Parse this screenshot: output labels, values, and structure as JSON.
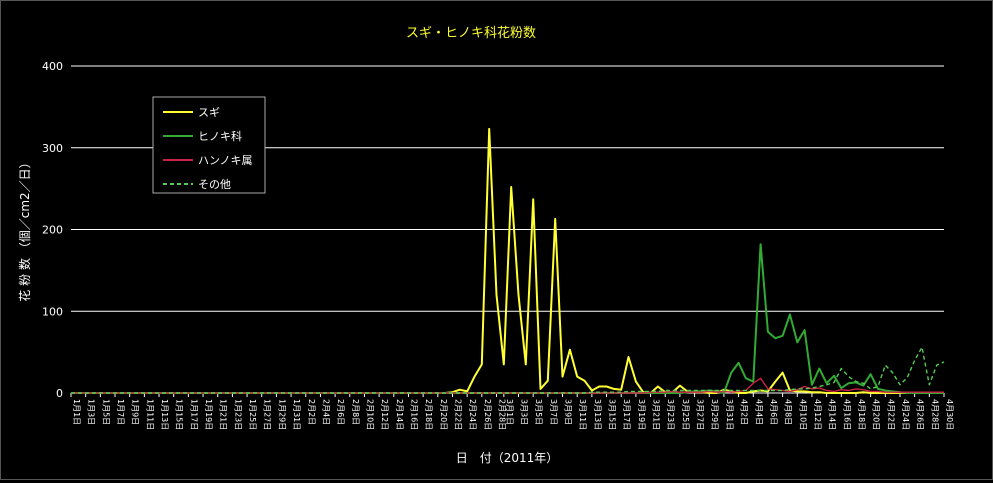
{
  "chart_data": {
    "type": "line",
    "title": "スギ・ヒノキ科花粉数",
    "xlabel": "日　付（2011年）",
    "ylabel": "花 粉 数 （個／cm2／日）",
    "ylim": [
      0,
      400
    ],
    "yticks": [
      0,
      100,
      200,
      300,
      400
    ],
    "grid": true,
    "legend_position": "top-left",
    "x_dates": [
      "1月1日",
      "1月2日",
      "1月3日",
      "1月4日",
      "1月5日",
      "1月6日",
      "1月7日",
      "1月8日",
      "1月9日",
      "1月10日",
      "1月11日",
      "1月12日",
      "1月13日",
      "1月14日",
      "1月15日",
      "1月16日",
      "1月17日",
      "1月18日",
      "1月19日",
      "1月20日",
      "1月21日",
      "1月22日",
      "1月23日",
      "1月24日",
      "1月25日",
      "1月26日",
      "1月27日",
      "1月28日",
      "1月29日",
      "1月30日",
      "1月31日",
      "2月1日",
      "2月2日",
      "2月3日",
      "2月4日",
      "2月5日",
      "2月6日",
      "2月7日",
      "2月8日",
      "2月9日",
      "2月10日",
      "2月11日",
      "2月12日",
      "2月13日",
      "2月14日",
      "2月15日",
      "2月16日",
      "2月17日",
      "2月18日",
      "2月19日",
      "2月20日",
      "2月21日",
      "2月22日",
      "2月23日",
      "2月24日",
      "2月25日",
      "2月26日",
      "2月27日",
      "2月28日",
      "3月1日",
      "3月2日",
      "3月3日",
      "3月4日",
      "3月5日",
      "3月6日",
      "3月7日",
      "3月8日",
      "3月9日",
      "3月10日",
      "3月11日",
      "3月12日",
      "3月13日",
      "3月14日",
      "3月15日",
      "3月16日",
      "3月17日",
      "3月18日",
      "3月19日",
      "3月20日",
      "3月21日",
      "3月22日",
      "3月23日",
      "3月24日",
      "3月25日",
      "3月26日",
      "3月27日",
      "3月28日",
      "3月29日",
      "3月30日",
      "3月31日",
      "4月1日",
      "4月2日",
      "4月3日",
      "4月4日",
      "4月5日",
      "4月6日",
      "4月7日",
      "4月8日",
      "4月9日",
      "4月10日",
      "4月11日",
      "4月12日",
      "4月13日",
      "4月14日",
      "4月15日",
      "4月16日",
      "4月17日",
      "4月18日",
      "4月19日",
      "4月20日",
      "4月21日",
      "4月22日",
      "4月23日",
      "4月24日",
      "4月25日",
      "4月26日",
      "4月27日",
      "4月28日",
      "4月29日",
      "4月30日"
    ],
    "x_tick_labels": [
      "1月1日",
      "1月3日",
      "1月5日",
      "1月7日",
      "1月9日",
      "1月11日",
      "1月13日",
      "1月15日",
      "1月17日",
      "1月19日",
      "1月21日",
      "1月23日",
      "1月25日",
      "1月27日",
      "1月29日",
      "1月31日",
      "2月2日",
      "2月4日",
      "2月6日",
      "2月8日",
      "2月10日",
      "2月12日",
      "2月14日",
      "2月16日",
      "2月18日",
      "2月20日",
      "2月22日",
      "2月24日",
      "2月26日",
      "2月28日",
      "3月1日",
      "3月3日",
      "3月5日",
      "3月7日",
      "3月9日",
      "3月11日",
      "3月13日",
      "3月15日",
      "3月17日",
      "3月19日",
      "3月21日",
      "3月23日",
      "3月25日",
      "3月27日",
      "3月29日",
      "3月31日",
      "4月2日",
      "4月4日",
      "4月6日",
      "4月8日",
      "4月10日",
      "4月12日",
      "4月14日",
      "4月16日",
      "4月18日",
      "4月20日",
      "4月22日",
      "4月24日",
      "4月26日",
      "4月28日",
      "4月30日"
    ],
    "series": [
      {
        "name": "スギ",
        "color": "#ffff33",
        "dash": "solid",
        "values": [
          0,
          0,
          0,
          0,
          0,
          0,
          0,
          0,
          0,
          0,
          0,
          0,
          0,
          0,
          0,
          0,
          0,
          0,
          0,
          0,
          0,
          0,
          0,
          0,
          0,
          0,
          0,
          0,
          0,
          0,
          0,
          0,
          0,
          0,
          0,
          0,
          0,
          0,
          0,
          0,
          0,
          0,
          0,
          0,
          0,
          0,
          0,
          0,
          0,
          0,
          0,
          0,
          1,
          4,
          2,
          20,
          35,
          323,
          120,
          35,
          252,
          120,
          35,
          237,
          5,
          15,
          213,
          20,
          53,
          20,
          15,
          3,
          8,
          8,
          5,
          4,
          44,
          14,
          1,
          0,
          8,
          1,
          1,
          9,
          2,
          1,
          1,
          0,
          0,
          4,
          2,
          0,
          0,
          2,
          3,
          2,
          14,
          25,
          3,
          2,
          2,
          1,
          1,
          0,
          0,
          0,
          0,
          0,
          1,
          0,
          0,
          0,
          0,
          0,
          0,
          0,
          0,
          0,
          0,
          0
        ]
      },
      {
        "name": "ヒノキ科",
        "color": "#33aa33",
        "dash": "solid",
        "values": [
          0,
          0,
          0,
          0,
          0,
          0,
          0,
          0,
          0,
          0,
          0,
          0,
          0,
          0,
          0,
          0,
          0,
          0,
          0,
          0,
          0,
          0,
          0,
          0,
          0,
          0,
          0,
          0,
          0,
          0,
          0,
          0,
          0,
          0,
          0,
          0,
          0,
          0,
          0,
          0,
          0,
          0,
          0,
          0,
          0,
          0,
          0,
          0,
          0,
          0,
          0,
          0,
          0,
          0,
          0,
          0,
          0,
          0,
          0,
          0,
          0,
          0,
          0,
          0,
          0,
          0,
          0,
          0,
          0,
          0,
          0,
          0,
          0,
          0,
          0,
          0,
          0,
          0,
          0,
          0,
          0,
          0,
          0,
          0,
          1,
          2,
          2,
          3,
          2,
          0,
          25,
          37,
          18,
          14,
          182,
          75,
          67,
          70,
          96,
          62,
          77,
          10,
          30,
          12,
          21,
          6,
          12,
          13,
          9,
          23,
          5,
          3,
          2,
          1,
          0,
          0,
          0,
          0,
          0,
          0
        ]
      },
      {
        "name": "ハンノキ属",
        "color": "#cc2244",
        "dash": "solid",
        "values": [
          0,
          0,
          0,
          0,
          0,
          0,
          0,
          0,
          0,
          0,
          0,
          0,
          0,
          0,
          0,
          0,
          0,
          0,
          0,
          0,
          0,
          0,
          0,
          0,
          0,
          0,
          0,
          0,
          0,
          0,
          0,
          0,
          0,
          0,
          0,
          0,
          0,
          0,
          0,
          0,
          0,
          0,
          0,
          0,
          0,
          0,
          0,
          0,
          0,
          0,
          0,
          0,
          0,
          0,
          0,
          0,
          0,
          0,
          0,
          0,
          0,
          0,
          0,
          0,
          0,
          0,
          0,
          0,
          0,
          0,
          0,
          0,
          0,
          0,
          0,
          0,
          0,
          0,
          0,
          1,
          1,
          1,
          2,
          1,
          1,
          1,
          1,
          2,
          1,
          2,
          1,
          2,
          3,
          12,
          18,
          5,
          4,
          3,
          2,
          4,
          8,
          5,
          6,
          3,
          2,
          4,
          3,
          5,
          4,
          2,
          2,
          1,
          1,
          1,
          1,
          1,
          1,
          1,
          1,
          1
        ]
      },
      {
        "name": "その他",
        "color": "#55cc55",
        "dash": "dashed",
        "values": [
          0,
          0,
          0,
          0,
          0,
          0,
          0,
          0,
          0,
          0,
          0,
          0,
          0,
          0,
          0,
          0,
          0,
          0,
          0,
          0,
          0,
          0,
          0,
          0,
          0,
          0,
          0,
          0,
          0,
          0,
          0,
          0,
          0,
          0,
          0,
          0,
          0,
          0,
          0,
          0,
          0,
          0,
          0,
          0,
          0,
          0,
          0,
          0,
          0,
          0,
          0,
          0,
          0,
          0,
          0,
          0,
          0,
          0,
          0,
          0,
          0,
          0,
          0,
          0,
          0,
          0,
          0,
          0,
          0,
          0,
          0,
          1,
          1,
          1,
          1,
          1,
          2,
          2,
          2,
          2,
          2,
          3,
          3,
          3,
          3,
          3,
          3,
          3,
          3,
          3,
          3,
          3,
          3,
          3,
          3,
          3,
          3,
          3,
          4,
          5,
          5,
          6,
          8,
          10,
          13,
          30,
          20,
          14,
          12,
          5,
          8,
          34,
          25,
          10,
          19,
          40,
          56,
          10,
          34,
          38
        ]
      }
    ]
  }
}
